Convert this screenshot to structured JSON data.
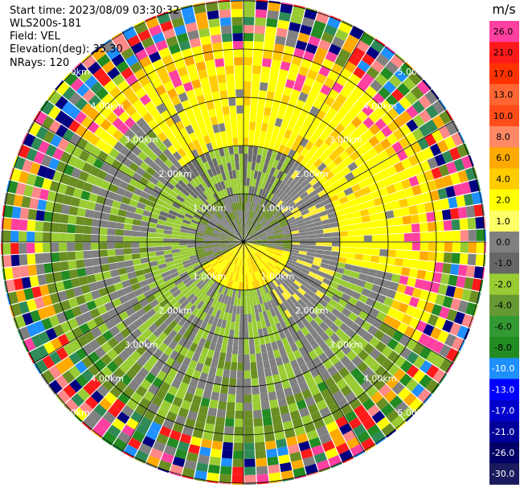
{
  "header": {
    "start_time": "Start time: 2023/08/09 03:30:32",
    "instrument": "WLS200s-181",
    "field": "Field: VEL",
    "elevation": "Elevation(deg): 35.30",
    "nrays": "NRays: 120"
  },
  "chart_data": {
    "type": "heatmap",
    "projection": "polar-ppi",
    "nrays": 120,
    "range_rings_km": [
      1.0,
      2.0,
      3.0,
      4.0,
      5.0
    ],
    "ring_labels": [
      "1.00km",
      "2.00km",
      "3.00km",
      "4.00km",
      "5.00km"
    ],
    "max_range_km": 5.8,
    "colorbar": {
      "unit": "m/s",
      "ticks": [
        "26.0",
        "21.0",
        "17.0",
        "13.0",
        "10.0",
        "8.0",
        "6.0",
        "4.0",
        "2.0",
        "1.0",
        "0.0",
        "-1.0",
        "-2.0",
        "-4.0",
        "-6.0",
        "-8.0",
        "-10.0",
        "-13.0",
        "-17.0",
        "-21.0",
        "-26.0",
        "-30.0"
      ],
      "colors": [
        "#ff40a0",
        "#ff1a1a",
        "#ff3300",
        "#ff6633",
        "#ff4d1a",
        "#ff8866",
        "#ffaa00",
        "#ffcc00",
        "#ffff00",
        "#ffff66",
        "#808080",
        "#666666",
        "#99cc33",
        "#669933",
        "#339933",
        "#228b22",
        "#1e90ff",
        "#0000ff",
        "#0000cc",
        "#000099",
        "#000066",
        "#1a1a5e"
      ]
    },
    "field": "VEL"
  }
}
